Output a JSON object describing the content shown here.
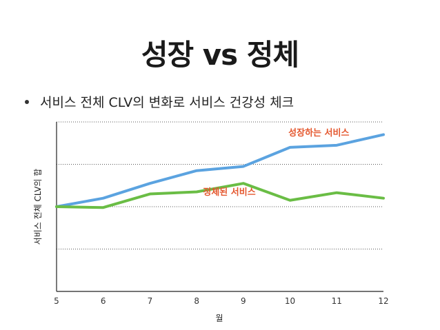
{
  "slide": {
    "title": "성장 vs 정체",
    "bullet": "서비스 전체 CLV의 변화로 서비스 건강성 체크"
  },
  "chart_data": {
    "type": "line",
    "x": [
      5,
      6,
      7,
      8,
      9,
      10,
      11,
      12
    ],
    "xlabel": "월",
    "ylabel": "서비스 전체 CLV의 합",
    "ylim": [
      0,
      4
    ],
    "grid": true,
    "y_ticks_labeled": false,
    "series": [
      {
        "name": "성장하는 서비스",
        "color": "#5ba3e0",
        "values": [
          2.0,
          2.2,
          2.55,
          2.85,
          2.95,
          3.4,
          3.45,
          3.7
        ]
      },
      {
        "name": "정체된 서비스",
        "color": "#6abd45",
        "values": [
          2.0,
          1.98,
          2.3,
          2.35,
          2.55,
          2.15,
          2.33,
          2.2
        ]
      }
    ],
    "annotations": [
      {
        "text": "성장하는 서비스",
        "series": 0,
        "color": "#e4572e"
      },
      {
        "text": "정체된 서비스",
        "series": 1,
        "color": "#e4572e"
      }
    ]
  }
}
